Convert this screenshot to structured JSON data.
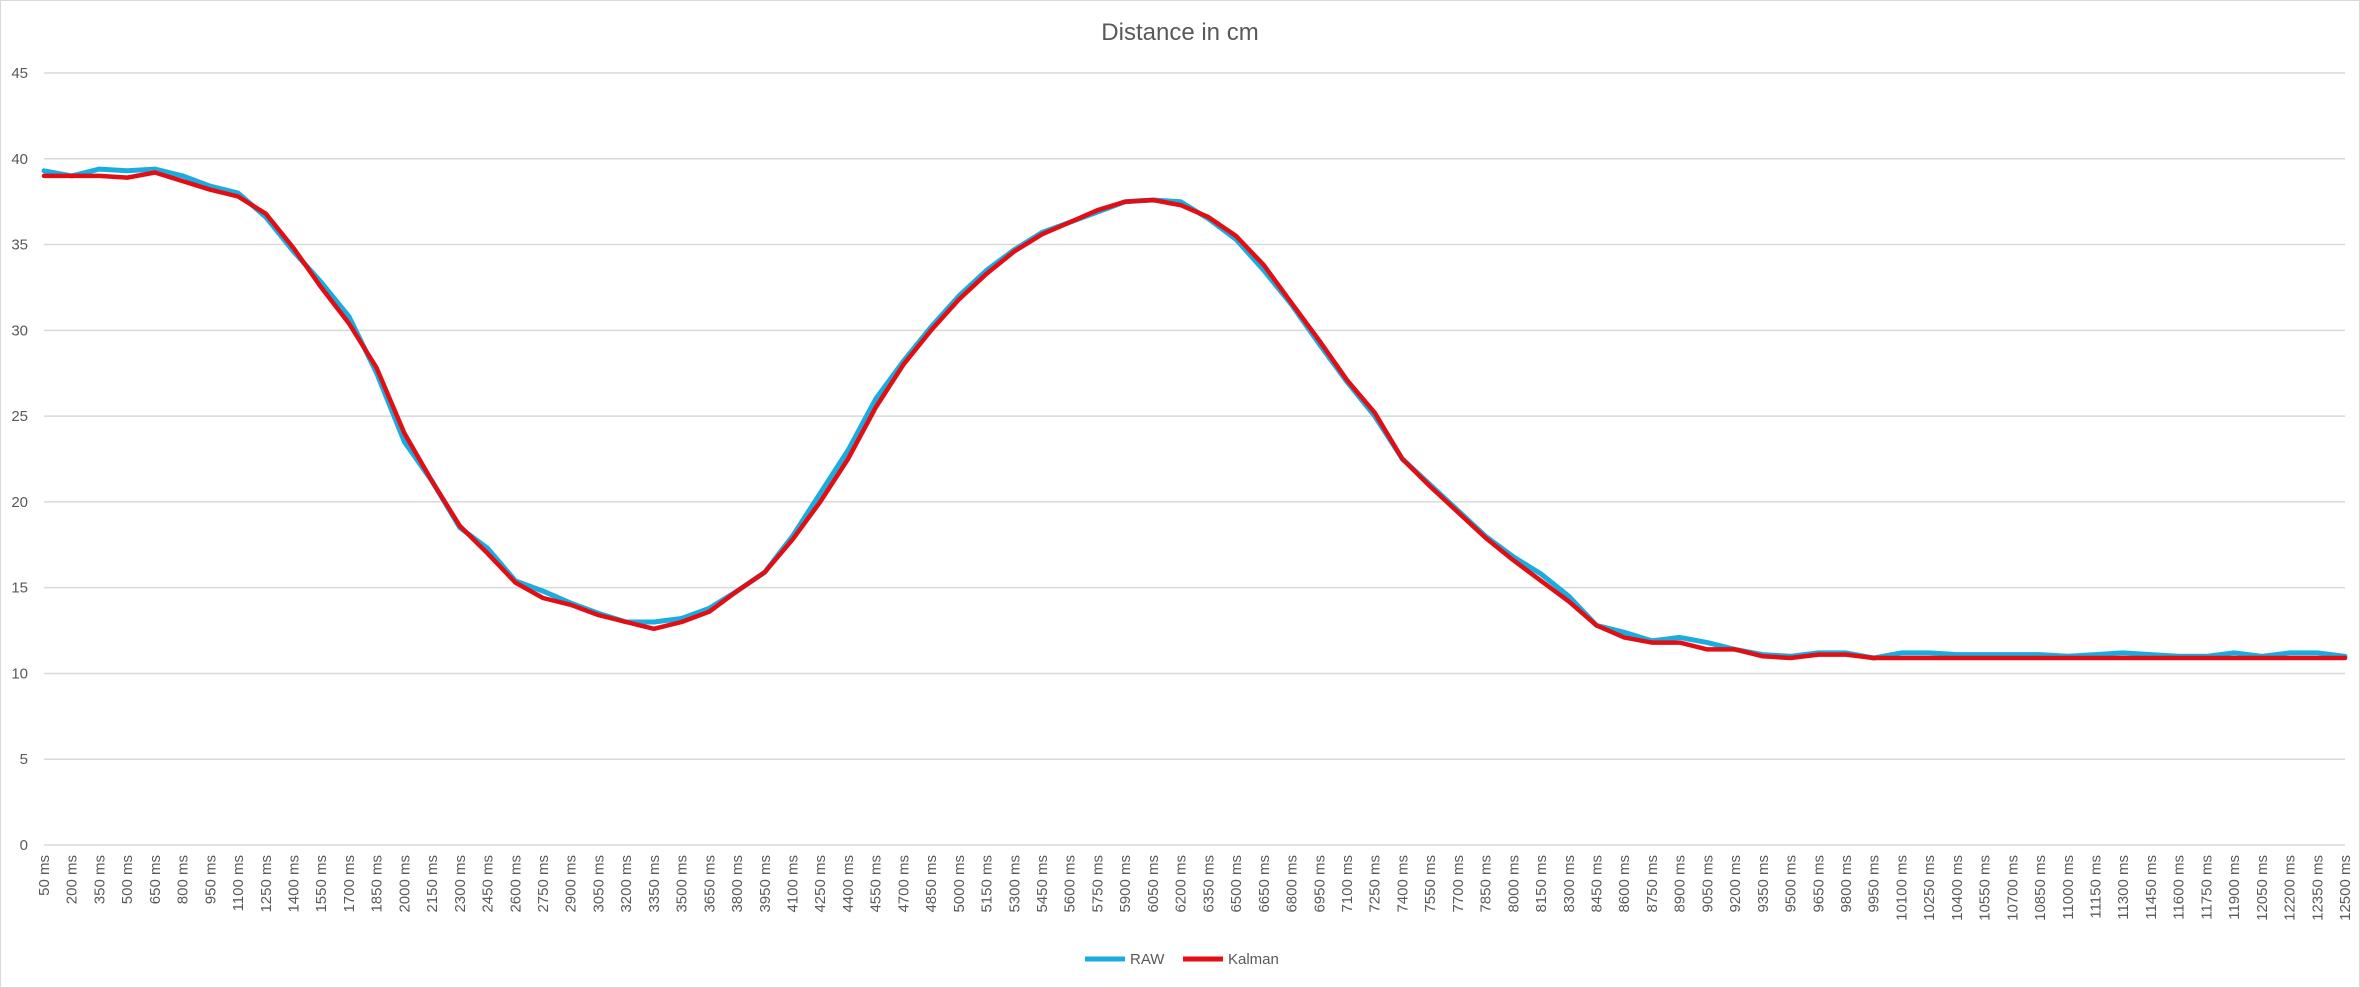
{
  "chart_data": {
    "type": "line",
    "title": "Distance in cm",
    "xlabel": "",
    "ylabel": "",
    "ylim": [
      0,
      45
    ],
    "y_ticks": [
      0,
      5,
      10,
      15,
      20,
      25,
      30,
      35,
      40,
      45
    ],
    "grid": true,
    "legend_position": "bottom",
    "x_tick_labels": [
      "50 ms",
      "200 ms",
      "350 ms",
      "500 ms",
      "650 ms",
      "800 ms",
      "950 ms",
      "1100 ms",
      "1250 ms",
      "1400 ms",
      "1550 ms",
      "1700 ms",
      "1850 ms",
      "2000 ms",
      "2150 ms",
      "2300 ms",
      "2450 ms",
      "2600 ms",
      "2750 ms",
      "2900 ms",
      "3050 ms",
      "3200 ms",
      "3350 ms",
      "3500 ms",
      "3650 ms",
      "3800 ms",
      "3950 ms",
      "4100 ms",
      "4250 ms",
      "4400 ms",
      "4550 ms",
      "4700 ms",
      "4850 ms",
      "5000 ms",
      "5150 ms",
      "5300 ms",
      "5450 ms",
      "5600 ms",
      "5750 ms",
      "5900 ms",
      "6050 ms",
      "6200 ms",
      "6350 ms",
      "6500 ms",
      "6650 ms",
      "6800 ms",
      "6950 ms",
      "7100 ms",
      "7250 ms",
      "7400 ms",
      "7550 ms",
      "7700 ms",
      "7850 ms",
      "8000 ms",
      "8150 ms",
      "8300 ms",
      "8450 ms",
      "8600 ms",
      "8750 ms",
      "8900 ms",
      "9050 ms",
      "9200 ms",
      "9350 ms",
      "9500 ms",
      "9650 ms",
      "9800 ms",
      "9950 ms",
      "10100 ms",
      "10250 ms",
      "10400 ms",
      "10550 ms",
      "10700 ms",
      "10850 ms",
      "11000 ms",
      "11150 ms",
      "11300 ms",
      "11450 ms",
      "11600 ms",
      "11750 ms",
      "11900 ms",
      "12050 ms",
      "12200 ms",
      "12350 ms",
      "12500 ms"
    ],
    "series": [
      {
        "name": "RAW",
        "color": "#1AACE0",
        "x": [
          50,
          200,
          350,
          500,
          650,
          800,
          950,
          1100,
          1250,
          1400,
          1550,
          1700,
          1850,
          2000,
          2150,
          2300,
          2450,
          2600,
          2750,
          2900,
          3050,
          3200,
          3350,
          3500,
          3650,
          3800,
          3950,
          4100,
          4250,
          4400,
          4550,
          4700,
          4850,
          5000,
          5150,
          5300,
          5450,
          5600,
          5750,
          5900,
          6050,
          6200,
          6350,
          6500,
          6650,
          6800,
          6950,
          7100,
          7250,
          7400,
          7550,
          7700,
          7850,
          8000,
          8150,
          8300,
          8450,
          8600,
          8750,
          8900,
          9050,
          9200,
          9350,
          9500,
          9650,
          9800,
          9950,
          10100,
          10250,
          10400,
          10550,
          10700,
          10850,
          11000,
          11150,
          11300,
          11450,
          11600,
          11750,
          11900,
          12050,
          12200,
          12350,
          12500
        ],
        "values": [
          39.3,
          39.0,
          39.4,
          39.3,
          39.4,
          39.0,
          38.4,
          38.0,
          36.6,
          34.6,
          32.8,
          30.8,
          27.5,
          23.5,
          21.2,
          18.5,
          17.3,
          15.4,
          14.8,
          14.1,
          13.5,
          13.0,
          13.0,
          13.2,
          13.8,
          14.8,
          15.9,
          18.0,
          20.5,
          23.0,
          26.0,
          28.2,
          30.2,
          32.0,
          33.5,
          34.7,
          35.7,
          36.3,
          36.9,
          37.5,
          37.6,
          37.5,
          36.5,
          35.3,
          33.5,
          31.5,
          29.2,
          27.0,
          25.0,
          22.5,
          21.0,
          19.5,
          18.0,
          16.8,
          15.8,
          14.5,
          12.8,
          12.4,
          11.9,
          12.1,
          11.8,
          11.4,
          11.1,
          11.0,
          11.2,
          11.2,
          10.9,
          11.2,
          11.2,
          11.1,
          11.1,
          11.1,
          11.1,
          11.0,
          11.1,
          11.2,
          11.1,
          11.0,
          11.0,
          11.2,
          11.0,
          11.2,
          11.2,
          11.0
        ]
      },
      {
        "name": "Kalman",
        "color": "#E10E14",
        "x": [
          50,
          200,
          350,
          500,
          650,
          800,
          950,
          1100,
          1250,
          1400,
          1550,
          1700,
          1850,
          2000,
          2150,
          2300,
          2450,
          2600,
          2750,
          2900,
          3050,
          3200,
          3350,
          3500,
          3650,
          3800,
          3950,
          4100,
          4250,
          4400,
          4550,
          4700,
          4850,
          5000,
          5150,
          5300,
          5450,
          5600,
          5750,
          5900,
          6050,
          6200,
          6350,
          6500,
          6650,
          6800,
          6950,
          7100,
          7250,
          7400,
          7550,
          7700,
          7850,
          8000,
          8150,
          8300,
          8450,
          8600,
          8750,
          8900,
          9050,
          9200,
          9350,
          9500,
          9650,
          9800,
          9950,
          10100,
          10250,
          10400,
          10550,
          10700,
          10850,
          11000,
          11150,
          11300,
          11450,
          11600,
          11750,
          11900,
          12050,
          12200,
          12350,
          12500
        ],
        "values": [
          39.0,
          39.0,
          39.0,
          38.9,
          39.2,
          38.7,
          38.2,
          37.8,
          36.8,
          34.8,
          32.5,
          30.4,
          27.8,
          24.0,
          21.2,
          18.6,
          17.0,
          15.3,
          14.4,
          14.0,
          13.4,
          13.0,
          12.6,
          13.0,
          13.6,
          14.8,
          15.9,
          17.8,
          20.0,
          22.5,
          25.5,
          28.0,
          30.0,
          31.8,
          33.3,
          34.6,
          35.6,
          36.3,
          37.0,
          37.5,
          37.6,
          37.3,
          36.6,
          35.5,
          33.8,
          31.6,
          29.4,
          27.1,
          25.2,
          22.5,
          20.9,
          19.4,
          17.9,
          16.6,
          15.4,
          14.2,
          12.8,
          12.1,
          11.8,
          11.8,
          11.4,
          11.4,
          11.0,
          10.9,
          11.1,
          11.1,
          10.9,
          10.9,
          10.9,
          10.9,
          10.9,
          10.9,
          10.9,
          10.9,
          10.9,
          10.9,
          10.9,
          10.9,
          10.9,
          10.9,
          10.9,
          10.9,
          10.9,
          10.9
        ]
      }
    ]
  }
}
